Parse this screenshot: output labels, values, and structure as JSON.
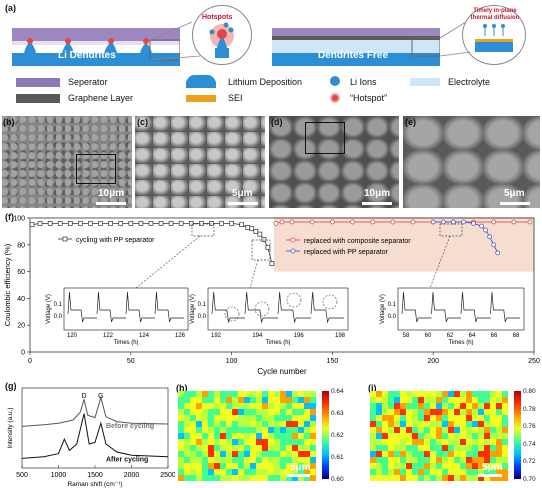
{
  "panels": {
    "a": "(a)",
    "b": "(b)",
    "c": "(c)",
    "d": "(d)",
    "e": "(e)",
    "f": "(f)",
    "g": "(g)",
    "h": "(h)",
    "i": "(i)"
  },
  "schematic": {
    "left_label": "Li Dendrites",
    "right_label": "Dendrites Free",
    "hotspots_label": "Hotspots",
    "timely_label": "Timely in-plane thermal diffusion"
  },
  "legend_a": {
    "separator": "Seperator",
    "graphene": "Graphene Layer",
    "lithium": "Lithium Deposition",
    "sei": "SEI",
    "li_ions": "Li Ions",
    "hotspot": "“Hotspot”",
    "electrolyte": "Electrolyte"
  },
  "sem_scales": {
    "b": "10μm",
    "c": "5μm",
    "d": "10μm",
    "e": "5μm"
  },
  "colors": {
    "separator": "#8e78b4",
    "graphene": "#5a5a5a",
    "lithium": "#2c8fd6",
    "sei": "#f0a020",
    "li_ion": "#2d8fd0",
    "hotspot": "#e04848",
    "electrolyte": "#cfe6f6",
    "shade_f": "#f5ddd0",
    "pp_series": "#333333",
    "composite_series": "#d43b3b",
    "pp2_series": "#3b49b8"
  },
  "chart_f": {
    "ylabel": "Coulombic efficiency (%)",
    "xlabel": "Cycle number",
    "legend_left": "cycling with PP separator",
    "legend_right": [
      "replaced with composite separator",
      "replaced with PP separator"
    ],
    "xticks": [
      "0",
      "50",
      "100",
      "150",
      "200",
      "250"
    ],
    "yticks": [
      "0",
      "20",
      "40",
      "60",
      "80",
      "100"
    ],
    "insets": [
      {
        "xlabel": "Times (h)",
        "ylabel": "Voltage (V)",
        "xticks": [
          "120",
          "122",
          "124",
          "126"
        ],
        "yticks": [
          "0.0",
          "0.1"
        ]
      },
      {
        "xlabel": "Times (h)",
        "ylabel": "Voltage (V)",
        "xticks": [
          "192",
          "194",
          "196",
          "198"
        ],
        "yticks": [
          "0.0",
          "0.1"
        ]
      },
      {
        "xlabel": "Times (h)",
        "ylabel": "Voltage (V)",
        "xticks": [
          "58",
          "60",
          "62",
          "64",
          "66",
          "68"
        ],
        "yticks": [
          "0.0",
          "0.1"
        ]
      }
    ]
  },
  "chart_g": {
    "ylabel": "Intensity (a.u.)",
    "xlabel": "Raman shift (cm⁻¹)",
    "peak_d": "D",
    "peak_g": "G",
    "before": "Before cycling",
    "after": "After cycling",
    "xticks": [
      "500",
      "1000",
      "1500",
      "2000",
      "2500"
    ]
  },
  "map_h": {
    "scale": "5μm",
    "ticks": [
      "0.64",
      "0.63",
      "0.62",
      "0.61",
      "0.60"
    ]
  },
  "map_i": {
    "scale": "5μm",
    "ticks": [
      "0.80",
      "0.78",
      "0.76",
      "0.74",
      "0.72",
      "0.70"
    ]
  },
  "chart_data": [
    {
      "type": "line",
      "title": "",
      "xlabel": "Cycle number",
      "ylabel": "Coulombic efficiency (%)",
      "xlim": [
        0,
        250
      ],
      "ylim": [
        0,
        100
      ],
      "series": [
        {
          "name": "cycling with PP separator",
          "x": [
            1,
            5,
            10,
            15,
            20,
            25,
            30,
            35,
            40,
            45,
            50,
            55,
            60,
            65,
            70,
            75,
            80,
            85,
            90,
            95,
            100,
            105,
            108,
            110,
            112,
            114,
            116,
            118,
            120
          ],
          "y": [
            95,
            96,
            96,
            96,
            96,
            96,
            96,
            96,
            96,
            96,
            96,
            96,
            96,
            96,
            96,
            96,
            96,
            96,
            96,
            96,
            96,
            95,
            93,
            92,
            90,
            88,
            84,
            78,
            66
          ]
        },
        {
          "name": "replaced with composite separator",
          "x": [
            122,
            125,
            130,
            140,
            150,
            160,
            170,
            180,
            190,
            200,
            210,
            220,
            230,
            240,
            248
          ],
          "y": [
            96,
            97,
            97,
            97,
            97,
            97,
            97,
            97,
            97,
            97,
            97,
            97,
            97,
            97,
            97
          ]
        },
        {
          "name": "replaced with PP separator",
          "x": [
            200,
            205,
            210,
            215,
            220,
            224,
            226,
            228,
            230,
            232
          ],
          "y": [
            97,
            97,
            97,
            97,
            96,
            94,
            91,
            86,
            80,
            74
          ]
        }
      ]
    },
    {
      "type": "line",
      "title": "",
      "xlabel": "Raman shift (cm⁻¹)",
      "ylabel": "Intensity (a.u.)",
      "xlim": [
        500,
        2500
      ],
      "series": [
        {
          "name": "Before cycling",
          "x": [
            500,
            800,
            1000,
            1200,
            1300,
            1350,
            1400,
            1500,
            1580,
            1650,
            1800,
            2000,
            2500
          ],
          "y": [
            0.52,
            0.54,
            0.56,
            0.6,
            0.7,
            0.86,
            0.66,
            0.63,
            0.88,
            0.64,
            0.58,
            0.56,
            0.55
          ]
        },
        {
          "name": "After cycling",
          "x": [
            500,
            800,
            1000,
            1080,
            1150,
            1250,
            1350,
            1420,
            1500,
            1580,
            1650,
            1800,
            2000,
            2500
          ],
          "y": [
            0.12,
            0.14,
            0.18,
            0.36,
            0.22,
            0.3,
            0.68,
            0.3,
            0.32,
            0.56,
            0.3,
            0.2,
            0.16,
            0.14
          ]
        }
      ]
    }
  ]
}
